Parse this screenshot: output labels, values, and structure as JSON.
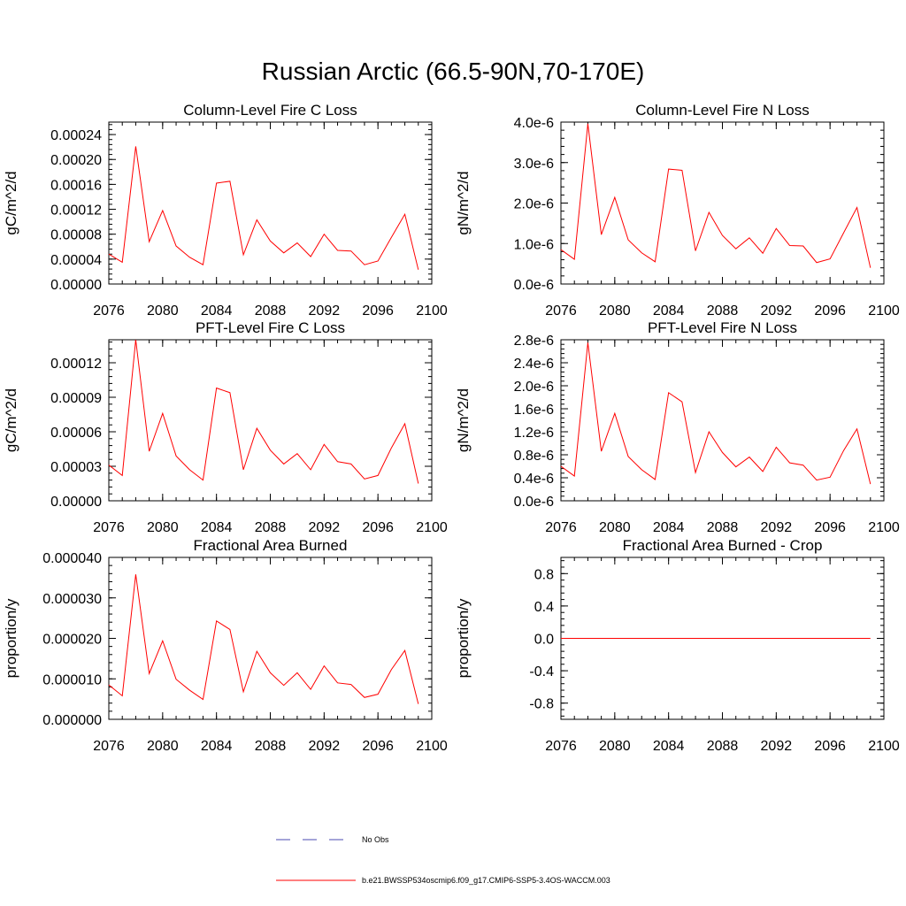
{
  "page": {
    "title": "Russian Arctic (66.5-90N,70-170E)"
  },
  "colors": {
    "model_line": "#ff0000",
    "obs_line": "#4a4ab0",
    "axis": "#000000"
  },
  "legend": {
    "obs_label": "No Obs",
    "model_label": "b.e21.BWSSP534oscmip6.f09_g17.CMIP6-SSP5-3.4OS-WACCM.003"
  },
  "chart_data": [
    {
      "type": "line",
      "title": "Column-Level Fire C Loss",
      "ylabel": "gC/m^2/d",
      "xlim": [
        2076,
        2100
      ],
      "ylim": [
        0,
        0.00026
      ],
      "x_ticks": [
        "2076",
        "2080",
        "2084",
        "2088",
        "2092",
        "2096",
        "2100"
      ],
      "y_ticks": [
        0,
        4e-05,
        8e-05,
        0.00012,
        0.00016,
        0.0002,
        0.00024
      ],
      "y_tick_labels": [
        "0.00000",
        "0.00004",
        "0.00008",
        "0.00012",
        "0.00016",
        "0.00020",
        "0.00024"
      ],
      "x": [
        2076,
        2077,
        2078,
        2079,
        2080,
        2081,
        2082,
        2083,
        2084,
        2085,
        2086,
        2087,
        2088,
        2089,
        2090,
        2091,
        2092,
        2093,
        2094,
        2095,
        2096,
        2097,
        2098,
        2099
      ],
      "series": [
        {
          "values": [
            4.8e-05,
            3.5e-05,
            0.000221,
            6.8e-05,
            0.000118,
            6.1e-05,
            4.3e-05,
            3.1e-05,
            0.000162,
            0.000165,
            4.7e-05,
            0.000103,
            6.9e-05,
            5e-05,
            6.6e-05,
            4.4e-05,
            8e-05,
            5.4e-05,
            5.3e-05,
            3.1e-05,
            3.7e-05,
            7.5e-05,
            0.000112,
            2.3e-05
          ]
        }
      ]
    },
    {
      "type": "line",
      "title": "Column-Level Fire N Loss",
      "ylabel": "gN/m^2/d",
      "xlim": [
        2076,
        2100
      ],
      "ylim": [
        0,
        4e-06
      ],
      "x_ticks": [
        "2076",
        "2080",
        "2084",
        "2088",
        "2092",
        "2096",
        "2100"
      ],
      "y_ticks": [
        0,
        1e-06,
        2e-06,
        3e-06,
        4e-06
      ],
      "y_tick_labels": [
        "0.0e-6",
        "1.0e-6",
        "2.0e-6",
        "3.0e-6",
        "4.0e-6"
      ],
      "x": [
        2076,
        2077,
        2078,
        2079,
        2080,
        2081,
        2082,
        2083,
        2084,
        2085,
        2086,
        2087,
        2088,
        2089,
        2090,
        2091,
        2092,
        2093,
        2094,
        2095,
        2096,
        2097,
        2098,
        2099
      ],
      "series": [
        {
          "values": [
            8.5e-07,
            6.1e-07,
            3.96e-06,
            1.22e-06,
            2.14e-06,
            1.09e-06,
            7.7e-07,
            5.5e-07,
            2.84e-06,
            2.81e-06,
            8.2e-07,
            1.77e-06,
            1.2e-06,
            8.7e-07,
            1.14e-06,
            7.6e-07,
            1.37e-06,
            9.5e-07,
            9.4e-07,
            5.3e-07,
            6.2e-07,
            1.26e-06,
            1.89e-06,
            4e-07
          ]
        }
      ]
    },
    {
      "type": "line",
      "title": "PFT-Level Fire C Loss",
      "ylabel": "gC/m^2/d",
      "xlim": [
        2076,
        2100
      ],
      "ylim": [
        0,
        0.00014
      ],
      "x_ticks": [
        "2076",
        "2080",
        "2084",
        "2088",
        "2092",
        "2096",
        "2100"
      ],
      "y_ticks": [
        0,
        3e-05,
        6e-05,
        9e-05,
        0.00012
      ],
      "y_tick_labels": [
        "0.00000",
        "0.00003",
        "0.00006",
        "0.00009",
        "0.00012"
      ],
      "x": [
        2076,
        2077,
        2078,
        2079,
        2080,
        2081,
        2082,
        2083,
        2084,
        2085,
        2086,
        2087,
        2088,
        2089,
        2090,
        2091,
        2092,
        2093,
        2094,
        2095,
        2096,
        2097,
        2098,
        2099
      ],
      "series": [
        {
          "values": [
            3.1e-05,
            2.2e-05,
            0.00014,
            4.3e-05,
            7.6e-05,
            3.9e-05,
            2.7e-05,
            1.8e-05,
            9.8e-05,
            9.4e-05,
            2.7e-05,
            6.3e-05,
            4.4e-05,
            3.2e-05,
            4.1e-05,
            2.7e-05,
            4.9e-05,
            3.4e-05,
            3.2e-05,
            1.9e-05,
            2.2e-05,
            4.6e-05,
            6.7e-05,
            1.5e-05
          ]
        }
      ]
    },
    {
      "type": "line",
      "title": "PFT-Level Fire N Loss",
      "ylabel": "gN/m^2/d",
      "xlim": [
        2076,
        2100
      ],
      "ylim": [
        0,
        2.8e-06
      ],
      "x_ticks": [
        "2076",
        "2080",
        "2084",
        "2088",
        "2092",
        "2096",
        "2100"
      ],
      "y_ticks": [
        0,
        4e-07,
        8e-07,
        1.2e-06,
        1.6e-06,
        2e-06,
        2.4e-06,
        2.8e-06
      ],
      "y_tick_labels": [
        "0.0e-6",
        "0.4e-6",
        "0.8e-6",
        "1.2e-6",
        "1.6e-6",
        "2.0e-6",
        "2.4e-6",
        "2.8e-6"
      ],
      "x": [
        2076,
        2077,
        2078,
        2079,
        2080,
        2081,
        2082,
        2083,
        2084,
        2085,
        2086,
        2087,
        2088,
        2089,
        2090,
        2091,
        2092,
        2093,
        2094,
        2095,
        2096,
        2097,
        2098,
        2099
      ],
      "series": [
        {
          "values": [
            6e-07,
            4.3e-07,
            2.75e-06,
            8.6e-07,
            1.52e-06,
            7.7e-07,
            5.4e-07,
            3.7e-07,
            1.88e-06,
            1.72e-06,
            4.9e-07,
            1.2e-06,
            8.4e-07,
            5.9e-07,
            7.6e-07,
            5.1e-07,
            9.3e-07,
            6.6e-07,
            6.2e-07,
            3.6e-07,
            4.1e-07,
            8.7e-07,
            1.25e-06,
            2.9e-07
          ]
        }
      ]
    },
    {
      "type": "line",
      "title": "Fractional Area Burned",
      "ylabel": "proportion/y",
      "xlim": [
        2076,
        2100
      ],
      "ylim": [
        0,
        4e-05
      ],
      "x_ticks": [
        "2076",
        "2080",
        "2084",
        "2088",
        "2092",
        "2096",
        "2100"
      ],
      "y_ticks": [
        0,
        1e-05,
        2e-05,
        3e-05,
        4e-05
      ],
      "y_tick_labels": [
        "0.000000",
        "0.000010",
        "0.000020",
        "0.000030",
        "0.000040"
      ],
      "x": [
        2076,
        2077,
        2078,
        2079,
        2080,
        2081,
        2082,
        2083,
        2084,
        2085,
        2086,
        2087,
        2088,
        2089,
        2090,
        2091,
        2092,
        2093,
        2094,
        2095,
        2096,
        2097,
        2098,
        2099
      ],
      "series": [
        {
          "values": [
            8.5e-06,
            5.8e-06,
            3.58e-05,
            1.13e-05,
            1.94e-05,
            9.9e-06,
            7.2e-06,
            4.9e-06,
            2.43e-05,
            2.22e-05,
            6.8e-06,
            1.68e-05,
            1.15e-05,
            8.4e-06,
            1.15e-05,
            7.4e-06,
            1.32e-05,
            9e-06,
            8.6e-06,
            5.4e-06,
            6.2e-06,
            1.23e-05,
            1.7e-05,
            3.8e-06
          ]
        }
      ]
    },
    {
      "type": "line",
      "title": "Fractional Area Burned - Crop",
      "ylabel": "proportion/y",
      "xlim": [
        2076,
        2100
      ],
      "ylim": [
        -1.0,
        1.0
      ],
      "x_ticks": [
        "2076",
        "2080",
        "2084",
        "2088",
        "2092",
        "2096",
        "2100"
      ],
      "y_ticks": [
        -0.8,
        -0.4,
        0,
        0.4,
        0.8
      ],
      "y_tick_labels": [
        "-0.8",
        "-0.4",
        "0.0",
        "0.4",
        "0.8"
      ],
      "x": [
        2076,
        2077,
        2078,
        2079,
        2080,
        2081,
        2082,
        2083,
        2084,
        2085,
        2086,
        2087,
        2088,
        2089,
        2090,
        2091,
        2092,
        2093,
        2094,
        2095,
        2096,
        2097,
        2098,
        2099
      ],
      "series": [
        {
          "values": [
            0,
            0,
            0,
            0,
            0,
            0,
            0,
            0,
            0,
            0,
            0,
            0,
            0,
            0,
            0,
            0,
            0,
            0,
            0,
            0,
            0,
            0,
            0,
            0
          ]
        }
      ]
    }
  ]
}
